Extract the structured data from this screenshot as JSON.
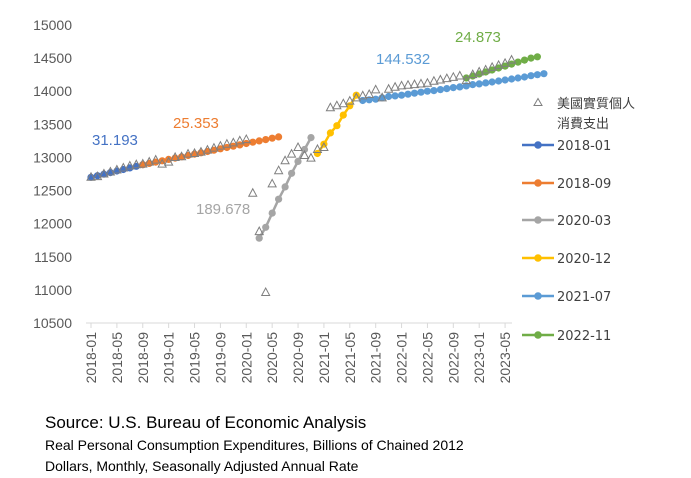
{
  "source": {
    "line": "Source: U.S. Bureau of Economic Analysis",
    "desc1": "Real Personal Consumption Expenditures, Billions of Chained 2012",
    "desc2": "Dollars, Monthly, Seasonally Adjusted Annual Rate"
  },
  "colors": {
    "observed": "#7f7f7f",
    "s2018_01": "#4472c4",
    "s2018_09": "#ed7d31",
    "s2020_03": "#a5a5a5",
    "s2020_12": "#ffc000",
    "s2021_07": "#5b9bd5",
    "s2022_11": "#70ad47",
    "axis": "#d9d9d9",
    "text": "#595959"
  },
  "chart_data": {
    "type": "scatter",
    "ylim": [
      10500,
      15000
    ],
    "yticks": [
      10500,
      11000,
      11500,
      12000,
      12500,
      13000,
      13500,
      14000,
      14500,
      15000
    ],
    "xticks": [
      "2018-01",
      "2018-05",
      "2018-09",
      "2019-01",
      "2019-05",
      "2019-09",
      "2020-01",
      "2020-05",
      "2020-09",
      "2021-01",
      "2021-05",
      "2021-09",
      "2022-01",
      "2022-05",
      "2022-09",
      "2023-01",
      "2023-05"
    ],
    "grid": false,
    "legend_position": "right",
    "observed": {
      "name": "美國實質個人消費支出",
      "x": [
        "2018-01",
        "2018-02",
        "2018-03",
        "2018-04",
        "2018-05",
        "2018-06",
        "2018-07",
        "2018-08",
        "2018-09",
        "2018-10",
        "2018-11",
        "2018-12",
        "2019-01",
        "2019-02",
        "2019-03",
        "2019-04",
        "2019-05",
        "2019-06",
        "2019-07",
        "2019-08",
        "2019-09",
        "2019-10",
        "2019-11",
        "2019-12",
        "2020-01",
        "2020-02",
        "2020-03",
        "2020-04",
        "2020-05",
        "2020-06",
        "2020-07",
        "2020-08",
        "2020-09",
        "2020-10",
        "2020-11",
        "2020-12",
        "2021-01",
        "2021-02",
        "2021-03",
        "2021-04",
        "2021-05",
        "2021-06",
        "2021-07",
        "2021-08",
        "2021-09",
        "2021-10",
        "2021-11",
        "2021-12",
        "2022-01",
        "2022-02",
        "2022-03",
        "2022-04",
        "2022-05",
        "2022-06",
        "2022-07",
        "2022-08",
        "2022-09",
        "2022-10",
        "2022-11",
        "2022-12",
        "2023-01",
        "2023-02",
        "2023-03",
        "2023-04",
        "2023-05",
        "2023-06"
      ],
      "values": [
        12700,
        12710,
        12750,
        12780,
        12810,
        12840,
        12870,
        12890,
        12900,
        12930,
        12960,
        12900,
        12930,
        13000,
        13010,
        13050,
        13060,
        13080,
        13110,
        13140,
        13170,
        13200,
        13220,
        13250,
        13270,
        12460,
        11880,
        10960,
        12600,
        12800,
        12950,
        13050,
        13150,
        13030,
        12990,
        13120,
        13150,
        13750,
        13780,
        13810,
        13850,
        13900,
        13930,
        13950,
        14020,
        13900,
        14030,
        14060,
        14080,
        14090,
        14100,
        14110,
        14120,
        14150,
        14170,
        14190,
        14210,
        14230,
        14160,
        14250,
        14290,
        14320,
        14360,
        14390,
        14420,
        14470
      ]
    },
    "series": [
      {
        "name": "2018-01",
        "color_key": "s2018_01",
        "start": "2018-01",
        "end": "2018-09",
        "values": [
          12700,
          12724,
          12747,
          12771,
          12795,
          12818,
          12842,
          12866,
          12890
        ],
        "slope_label": "31.193"
      },
      {
        "name": "2018-09",
        "color_key": "s2018_09",
        "start": "2018-09",
        "end": "2020-02",
        "values": [
          12890,
          12910,
          12930,
          12950,
          12970,
          12990,
          13010,
          13030,
          13050,
          13070,
          13090,
          13110,
          13130,
          13150,
          13170,
          13190,
          13210,
          13230,
          13250,
          13270,
          13290,
          13310
        ],
        "slope_label": "25.353"
      },
      {
        "name": "2020-03",
        "color_key": "s2020_03",
        "start": "2020-03",
        "end": "2020-12",
        "values": [
          11780,
          11945,
          12160,
          12370,
          12555,
          12760,
          12940,
          13120,
          13300
        ],
        "slope_label": "189.678"
      },
      {
        "name": "2020-12",
        "color_key": "s2020_12",
        "start": "2020-12",
        "end": "2021-07",
        "values": [
          13060,
          13200,
          13370,
          13480,
          13640,
          13780,
          13940
        ],
        "slope_label": ""
      },
      {
        "name": "2021-07",
        "color_key": "s2021_07",
        "start": "2021-07",
        "end": "2022-11",
        "values": [
          13860,
          13870,
          13880,
          13900,
          13920,
          13930,
          13940,
          13955,
          13970,
          13985,
          14000,
          14010,
          14025,
          14040,
          14055,
          14065,
          14080,
          14100,
          14110,
          14125,
          14140,
          14155,
          14170,
          14185,
          14200,
          14215,
          14235,
          14250,
          14265
        ],
        "slope_label": "144.532"
      },
      {
        "name": "2022-11",
        "color_key": "s2022_11",
        "start": "2022-11",
        "end": "2023-06",
        "values": [
          14200,
          14230,
          14260,
          14290,
          14320,
          14350,
          14380,
          14410,
          14440,
          14470,
          14500,
          14520
        ],
        "slope_label": "24.873"
      }
    ]
  }
}
